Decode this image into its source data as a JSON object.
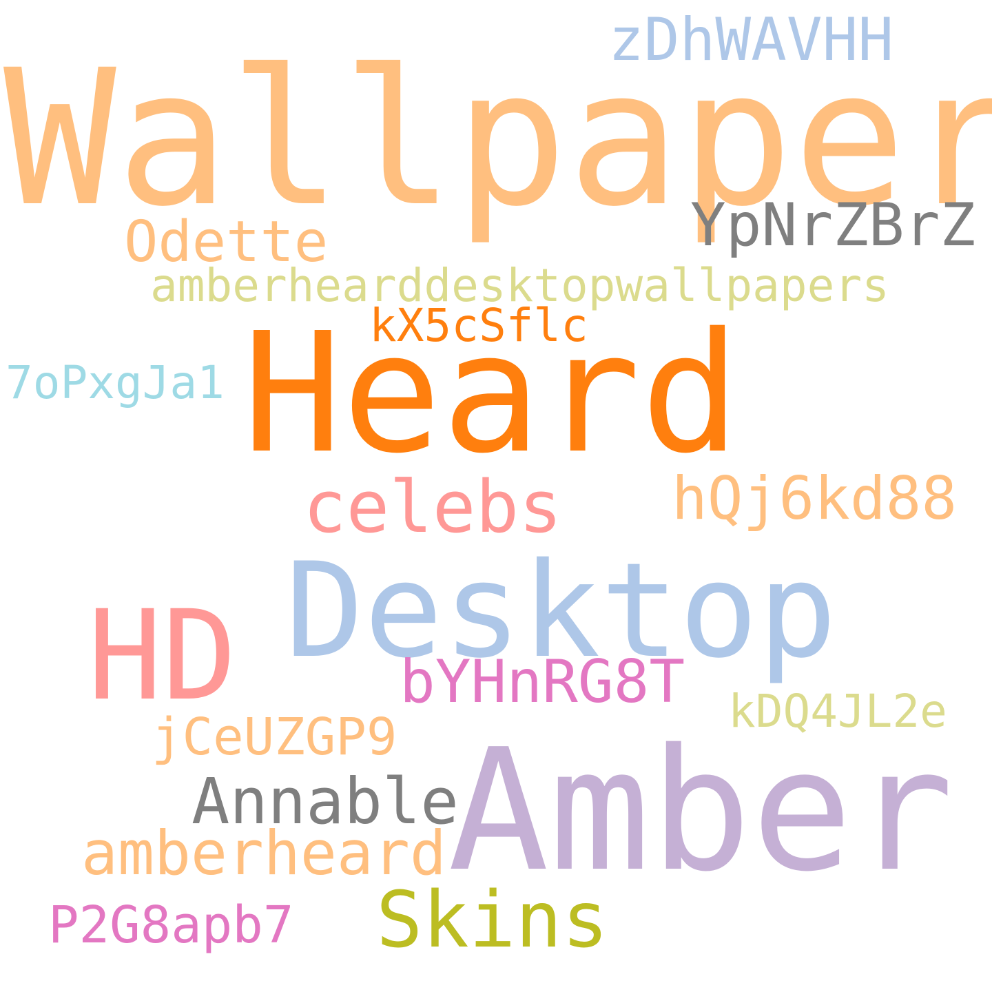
{
  "words": [
    {
      "id": "wallpaper",
      "text": "Wallpaper",
      "color": "#FFBF7F"
    },
    {
      "id": "zdhwavhh",
      "text": "zDhWAVHH",
      "color": "#AEC7E8"
    },
    {
      "id": "ypnrzbrz",
      "text": "YpNrZBrZ",
      "color": "#7F7F7F"
    },
    {
      "id": "odette",
      "text": "Odette",
      "color": "#FFBF7F"
    },
    {
      "id": "amberheard_desktop",
      "text": "amberhearddesktopwallpapers",
      "color": "#DBDB8D"
    },
    {
      "id": "kx5csflc",
      "text": "kX5cSflc",
      "color": "#FF7F0E"
    },
    {
      "id": "heard",
      "text": "Heard",
      "color": "#FF7F0E"
    },
    {
      "id": "7opxgja1",
      "text": "7oPxgJa1",
      "color": "#9EDAE5"
    },
    {
      "id": "celebs",
      "text": "celebs",
      "color": "#FF9896"
    },
    {
      "id": "hqj6kd88",
      "text": "hQj6kd88",
      "color": "#FFBF7F"
    },
    {
      "id": "desktop",
      "text": "Desktop",
      "color": "#AEC7E8"
    },
    {
      "id": "hd",
      "text": "HD",
      "color": "#FF9896"
    },
    {
      "id": "byhnrg8t",
      "text": "bYHnRG8T",
      "color": "#E377C2"
    },
    {
      "id": "kdq4jl2e",
      "text": "kDQ4JL2e",
      "color": "#DBDB8D"
    },
    {
      "id": "jceuzgp9",
      "text": "jCeUZGP9",
      "color": "#FFBF7F"
    },
    {
      "id": "amber",
      "text": "Amber",
      "color": "#C5B0D5"
    },
    {
      "id": "annable",
      "text": "Annable",
      "color": "#7F7F7F"
    },
    {
      "id": "amberheard",
      "text": "amberheard",
      "color": "#FFBF7F"
    },
    {
      "id": "skins",
      "text": "Skins",
      "color": "#BCBD22"
    },
    {
      "id": "p2g8apb7",
      "text": "P2G8apb7",
      "color": "#E377C2"
    }
  ]
}
